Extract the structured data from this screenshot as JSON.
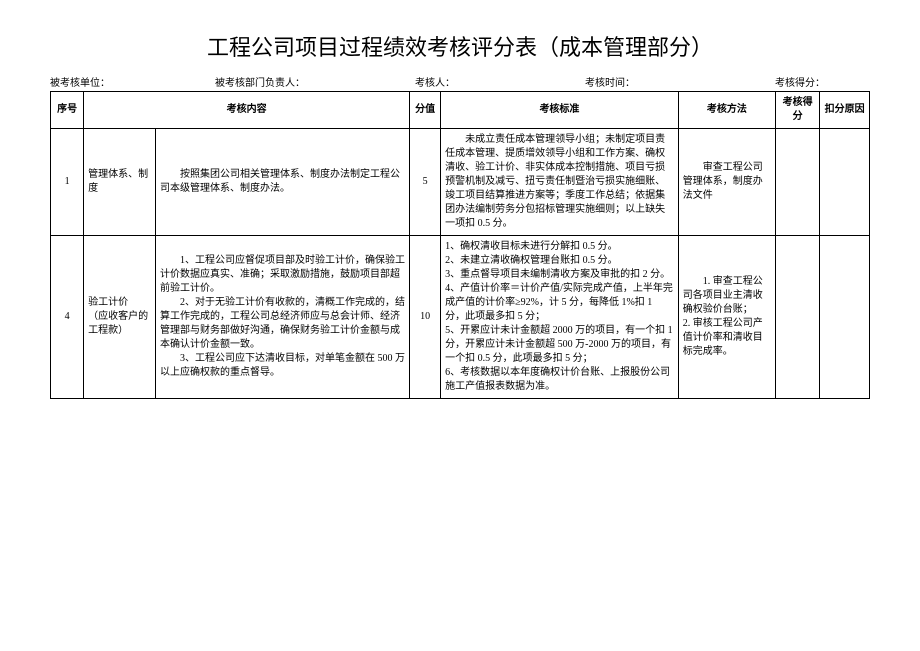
{
  "title": "工程公司项目过程绩效考核评分表（成本管理部分）",
  "meta": {
    "unit_label": "被考核单位：",
    "dept_label": "被考核部门负责人：",
    "assessor_label": "考核人：",
    "time_label": "考核时间：",
    "score_label": "考核得分："
  },
  "headers": {
    "seq": "序号",
    "content": "考核内容",
    "score": "分值",
    "standard": "考核标准",
    "method": "考核方法",
    "got": "考核得分",
    "deduct": "扣分原因"
  },
  "rows": [
    {
      "seq": "1",
      "item": "管理体系、制度",
      "content_lines": [
        "按照集团公司相关管理体系、制度办法制定工程公司本级管理体系、制度办法。"
      ],
      "score": "5",
      "standard_lines": [
        "未成立责任成本管理领导小组；未制定项目责任成本管理、提质增效领导小组和工作方案、确权清收、验工计价、非实体成本控制措施、项目亏损预警机制及减亏、扭亏责任制暨治亏损实施细账、竣工项目结算推进方案等；季度工作总结；依据集团办法编制劳务分包招标管理实施细则；以上缺失一项扣 0.5 分。"
      ],
      "method": "审查工程公司管理体系，制度办法文件"
    },
    {
      "seq": "4",
      "item": "验工计价\n（应收客户的工程款）",
      "content_lines": [
        "1、工程公司应督促项目部及时验工计价，确保验工计价数据应真实、准确；采取激励措施，鼓励项目部超前验工计价。",
        "2、对于无验工计价有收款的，清概工作完成的，结算工作完成的，工程公司总经济师应与总会计师、经济管理部与财务部做好沟通，确保财务验工计价金额与成本确认计价金额一致。",
        "3、工程公司应下达清收目标，对单笔金额在 500 万以上应确权款的重点督导。"
      ],
      "score": "10",
      "standard_lines": [
        "1、确权清收目标未进行分解扣 0.5 分。",
        "2、未建立清收确权管理台账扣 0.5 分。",
        "3、重点督导项目未编制清收方案及审批的扣 2 分。",
        "4、产值计价率＝计价产值/实际完成产值，上半年完成产值的计价率≥92%，计 5 分，每降低 1%扣 1 分，此项最多扣 5 分；",
        "5、开累应计未计金额超 2000 万的项目，有一个扣 1 分，开累应计未计金额超 500 万-2000 万的项目，有一个扣 0.5 分，此项最多扣 5 分；",
        "6、考核数据以本年度确权计价台账、上报股份公司施工产值报表数据为准。"
      ],
      "method": "1. 审查工程公司各项目业主清收确权验价台账；\n2. 审核工程公司产值计价率和清收目标完成率。"
    }
  ]
}
